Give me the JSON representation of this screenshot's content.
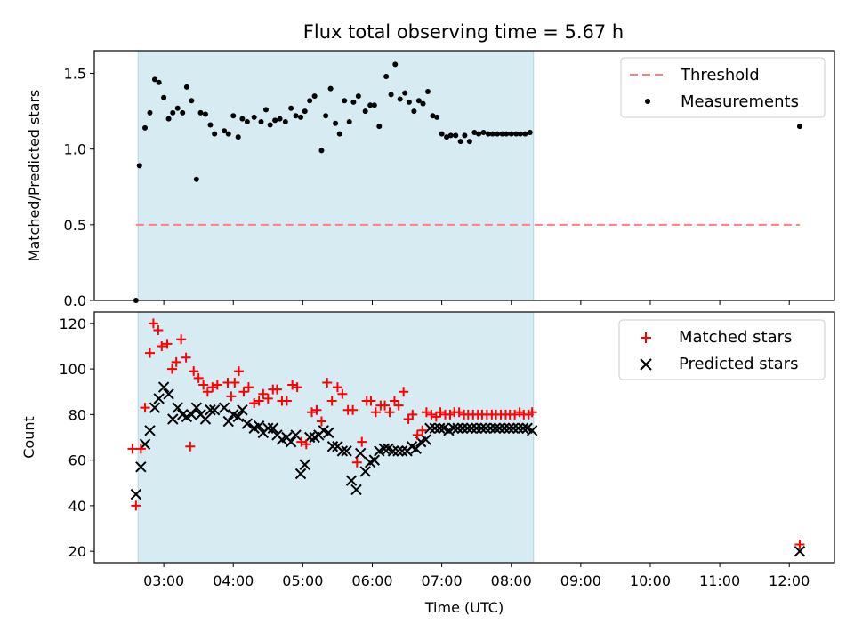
{
  "title": "Flux total observing time = 5.67 h",
  "chart_data": [
    {
      "type": "scatter",
      "ylabel": "Matched/Predicted stars",
      "xlabel": "",
      "ylim": [
        0,
        1.65
      ],
      "yticks": [
        0.0,
        0.5,
        1.0,
        1.5
      ],
      "ytick_labels": [
        "0.0",
        "0.5",
        "1.0",
        "1.5"
      ],
      "legend": {
        "position": "top-right",
        "entries": [
          "Threshold",
          "Measurements"
        ]
      },
      "threshold": {
        "name": "Threshold",
        "value": 0.5,
        "x_start": 2.6,
        "x_end": 12.15,
        "color": "#ff7f7f"
      },
      "shaded_span": {
        "x_start": 2.63,
        "x_end": 8.32,
        "color": "#add8e6"
      },
      "series": [
        {
          "name": "Measurements",
          "color": "#000000",
          "x": [
            2.6,
            2.65,
            2.73,
            2.8,
            2.87,
            2.93,
            3.0,
            3.07,
            3.13,
            3.2,
            3.27,
            3.33,
            3.4,
            3.47,
            3.53,
            3.6,
            3.67,
            3.73,
            3.87,
            3.93,
            4.0,
            4.07,
            4.13,
            4.2,
            4.3,
            4.4,
            4.47,
            4.53,
            4.6,
            4.67,
            4.75,
            4.83,
            4.9,
            4.97,
            5.03,
            5.1,
            5.17,
            5.27,
            5.33,
            5.4,
            5.47,
            5.53,
            5.6,
            5.67,
            5.73,
            5.8,
            5.9,
            5.97,
            6.03,
            6.1,
            6.2,
            6.27,
            6.33,
            6.4,
            6.47,
            6.53,
            6.6,
            6.67,
            6.73,
            6.8,
            6.87,
            6.93,
            7.0,
            7.07,
            7.13,
            7.2,
            7.27,
            7.33,
            7.4,
            7.47,
            7.53,
            7.6,
            7.67,
            7.73,
            7.8,
            7.87,
            7.93,
            8.0,
            8.07,
            8.13,
            8.2,
            8.27,
            12.15
          ],
          "y": [
            0.0,
            0.89,
            1.14,
            1.24,
            1.46,
            1.44,
            1.34,
            1.2,
            1.24,
            1.27,
            1.24,
            1.41,
            1.32,
            0.8,
            1.24,
            1.23,
            1.16,
            1.1,
            1.12,
            1.1,
            1.22,
            1.08,
            1.2,
            1.18,
            1.21,
            1.18,
            1.26,
            1.16,
            1.19,
            1.2,
            1.18,
            1.27,
            1.22,
            1.21,
            1.25,
            1.32,
            1.35,
            0.99,
            1.22,
            1.4,
            1.17,
            1.1,
            1.32,
            1.18,
            1.31,
            1.35,
            1.25,
            1.29,
            1.29,
            1.15,
            1.48,
            1.36,
            1.56,
            1.33,
            1.37,
            1.31,
            1.25,
            1.32,
            1.3,
            1.38,
            1.22,
            1.21,
            1.1,
            1.08,
            1.09,
            1.09,
            1.05,
            1.09,
            1.05,
            1.11,
            1.1,
            1.11,
            1.1,
            1.1,
            1.1,
            1.1,
            1.1,
            1.1,
            1.1,
            1.1,
            1.1,
            1.11,
            1.15
          ]
        }
      ]
    },
    {
      "type": "scatter",
      "xlabel": "Time (UTC)",
      "ylabel": "Count",
      "ylim": [
        15,
        125
      ],
      "yticks": [
        20,
        40,
        60,
        80,
        100,
        120
      ],
      "ytick_labels": [
        "20",
        "40",
        "60",
        "80",
        "100",
        "120"
      ],
      "xlim": [
        2.0,
        12.65
      ],
      "xticks": [
        3,
        4,
        5,
        6,
        7,
        8,
        9,
        10,
        11,
        12
      ],
      "xtick_labels": [
        "03:00",
        "04:00",
        "05:00",
        "06:00",
        "07:00",
        "08:00",
        "09:00",
        "10:00",
        "11:00",
        "12:00"
      ],
      "legend": {
        "position": "top-right",
        "entries": [
          "Matched stars",
          "Predicted stars"
        ]
      },
      "shaded_span": {
        "x_start": 2.63,
        "x_end": 8.32,
        "color": "#add8e6"
      },
      "series": [
        {
          "name": "Matched stars",
          "marker": "+",
          "color": "#ff0000",
          "x": [
            2.55,
            2.6,
            2.67,
            2.73,
            2.8,
            2.85,
            2.92,
            2.97,
            3.05,
            3.12,
            3.18,
            3.25,
            3.32,
            3.38,
            3.43,
            3.5,
            3.57,
            3.63,
            3.7,
            3.77,
            3.92,
            3.97,
            4.02,
            4.08,
            4.15,
            4.22,
            4.3,
            4.37,
            4.43,
            4.5,
            4.57,
            4.63,
            4.7,
            4.77,
            4.85,
            4.92,
            4.98,
            5.05,
            5.13,
            5.2,
            5.27,
            5.35,
            5.42,
            5.5,
            5.57,
            5.65,
            5.72,
            5.78,
            5.85,
            5.92,
            5.98,
            6.05,
            6.12,
            6.18,
            6.25,
            6.32,
            6.38,
            6.45,
            6.52,
            6.58,
            6.65,
            6.72,
            6.78,
            6.85,
            6.92,
            6.98,
            7.05,
            7.12,
            7.18,
            7.25,
            7.32,
            7.38,
            7.45,
            7.52,
            7.58,
            7.65,
            7.72,
            7.78,
            7.85,
            7.92,
            7.98,
            8.05,
            8.12,
            8.18,
            8.25,
            8.3,
            12.15
          ],
          "y": [
            65,
            40,
            65,
            83,
            107,
            120,
            117,
            110,
            111,
            100,
            103,
            113,
            105,
            66,
            99,
            96,
            93,
            90,
            92,
            93,
            94,
            88,
            94,
            99,
            90,
            92,
            85,
            86,
            89,
            87,
            91,
            91,
            86,
            86,
            93,
            92,
            68,
            67,
            81,
            82,
            77,
            94,
            86,
            92,
            89,
            82,
            82,
            59,
            68,
            86,
            86,
            81,
            84,
            84,
            81,
            86,
            84,
            90,
            78,
            80,
            71,
            73,
            81,
            80,
            79,
            81,
            80,
            80,
            81,
            81,
            80,
            80,
            80,
            80,
            80,
            80,
            80,
            80,
            80,
            80,
            80,
            80,
            81,
            80,
            80,
            81,
            23
          ],
          "note": ""
        },
        {
          "name": "Predicted stars",
          "marker": "x",
          "color": "#000000",
          "x": [
            2.6,
            2.67,
            2.73,
            2.8,
            2.87,
            2.93,
            3.0,
            3.07,
            3.13,
            3.2,
            3.27,
            3.33,
            3.4,
            3.47,
            3.53,
            3.6,
            3.67,
            3.73,
            3.87,
            3.93,
            4.0,
            4.07,
            4.13,
            4.2,
            4.3,
            4.37,
            4.43,
            4.5,
            4.57,
            4.63,
            4.7,
            4.77,
            4.83,
            4.9,
            4.97,
            5.03,
            5.1,
            5.17,
            5.23,
            5.3,
            5.37,
            5.43,
            5.5,
            5.57,
            5.63,
            5.7,
            5.77,
            5.83,
            5.9,
            5.97,
            6.03,
            6.1,
            6.17,
            6.23,
            6.3,
            6.37,
            6.43,
            6.5,
            6.57,
            6.63,
            6.7,
            6.77,
            6.83,
            6.9,
            6.97,
            7.03,
            7.1,
            7.17,
            7.23,
            7.3,
            7.37,
            7.43,
            7.5,
            7.57,
            7.63,
            7.7,
            7.77,
            7.83,
            7.9,
            7.97,
            8.03,
            8.1,
            8.17,
            8.23,
            8.3,
            12.15
          ],
          "y": [
            45,
            57,
            67,
            73,
            83,
            87,
            92,
            89,
            78,
            83,
            80,
            79,
            80,
            83,
            80,
            78,
            82,
            82,
            83,
            77,
            80,
            79,
            82,
            76,
            74,
            75,
            72,
            74,
            74,
            71,
            69,
            70,
            68,
            71,
            54,
            58,
            70,
            70,
            71,
            73,
            72,
            66,
            66,
            64,
            64,
            51,
            47,
            63,
            55,
            59,
            60,
            64,
            65,
            65,
            64,
            64,
            64,
            64,
            66,
            65,
            68,
            69,
            74,
            74,
            74,
            74,
            73,
            74,
            74,
            74,
            74,
            74,
            74,
            74,
            74,
            74,
            74,
            74,
            74,
            74,
            74,
            74,
            74,
            74,
            73,
            20
          ]
        }
      ]
    }
  ]
}
